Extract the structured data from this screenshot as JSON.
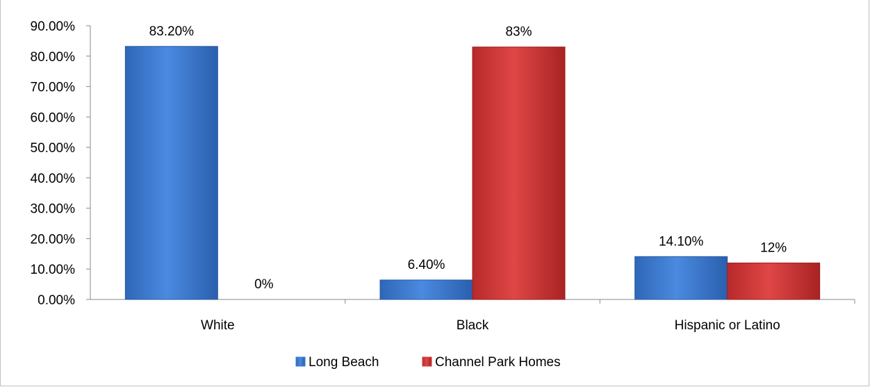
{
  "chart_data": {
    "type": "bar",
    "categories": [
      "White",
      "Black",
      "Hispanic or Latino"
    ],
    "series": [
      {
        "name": "Long Beach",
        "values": [
          0.832,
          0.064,
          0.141
        ],
        "labels": [
          "83.20%",
          "6.40%",
          "14.10%"
        ],
        "color": "#3f7fd3"
      },
      {
        "name": "Channel Park Homes",
        "values": [
          0.0,
          0.83,
          0.12
        ],
        "labels": [
          "0%",
          "83%",
          "12%"
        ],
        "color": "#d63b3b"
      }
    ],
    "ylim": [
      0,
      0.9
    ],
    "ytick_step": 0.1,
    "ytick_labels": [
      "0.00%",
      "10.00%",
      "20.00%",
      "30.00%",
      "40.00%",
      "50.00%",
      "60.00%",
      "70.00%",
      "80.00%",
      "90.00%"
    ],
    "legend_position": "bottom",
    "grid": false
  }
}
